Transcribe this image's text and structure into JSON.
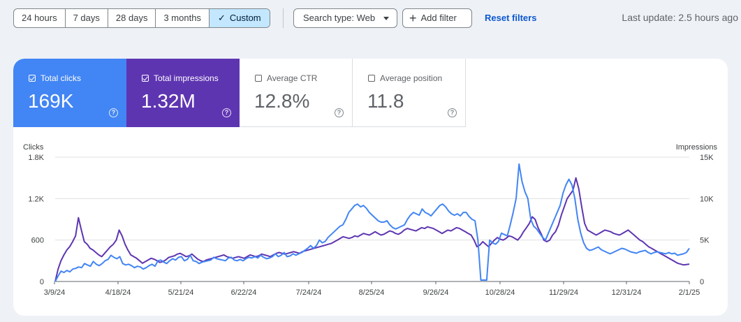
{
  "date_range": {
    "options": [
      "24 hours",
      "7 days",
      "28 days",
      "3 months",
      "Custom"
    ],
    "selected": "Custom"
  },
  "filters": {
    "search_type": "Search type: Web",
    "add_filter": "Add filter",
    "reset": "Reset filters"
  },
  "last_update": "Last update: 2.5 hours ago",
  "metrics": [
    {
      "label": "Total clicks",
      "value": "169K",
      "checked": true,
      "color": "#4285f4"
    },
    {
      "label": "Total impressions",
      "value": "1.32M",
      "checked": true,
      "color": "#5e35b1"
    },
    {
      "label": "Average CTR",
      "value": "12.8%",
      "checked": false
    },
    {
      "label": "Average position",
      "value": "11.8",
      "checked": false
    }
  ],
  "chart_data": {
    "type": "line",
    "left_axis_title": "Clicks",
    "right_axis_title": "Impressions",
    "left_ticks": [
      "1.8K",
      "1.2K",
      "600",
      "0"
    ],
    "right_ticks": [
      "15K",
      "10K",
      "5K",
      "0"
    ],
    "x_ticks": [
      "3/9/24",
      "4/18/24",
      "5/21/24",
      "6/22/24",
      "7/24/24",
      "8/25/24",
      "9/26/24",
      "10/28/24",
      "11/29/24",
      "12/31/24",
      "2/1/25"
    ],
    "ylim_left": [
      0,
      1800
    ],
    "ylim_right": [
      0,
      15000
    ],
    "grid": true,
    "series": [
      {
        "name": "Clicks",
        "axis": "left",
        "color": "#4285f4",
        "values": [
          0,
          80,
          150,
          130,
          160,
          140,
          180,
          190,
          210,
          200,
          260,
          240,
          220,
          290,
          250,
          230,
          260,
          300,
          320,
          380,
          350,
          330,
          360,
          260,
          240,
          250,
          230,
          200,
          220,
          210,
          180,
          200,
          230,
          250,
          220,
          300,
          310,
          280,
          260,
          300,
          330,
          310,
          350,
          360,
          300,
          320,
          380,
          300,
          290,
          260,
          280,
          290,
          300,
          310,
          350,
          330,
          320,
          310,
          300,
          340,
          350,
          310,
          300,
          320,
          300,
          330,
          350,
          340,
          360,
          340,
          380,
          350,
          330,
          340,
          360,
          400,
          360,
          380,
          420,
          360,
          370,
          400,
          380,
          400,
          420,
          450,
          480,
          520,
          480,
          520,
          600,
          560,
          580,
          640,
          680,
          720,
          760,
          800,
          820,
          900,
          1000,
          1050,
          1100,
          1120,
          1080,
          1100,
          1060,
          1000,
          960,
          920,
          880,
          860,
          860,
          880,
          820,
          780,
          760,
          780,
          800,
          820,
          900,
          960,
          1000,
          980,
          960,
          1050,
          1000,
          980,
          950,
          1000,
          1050,
          1100,
          1120,
          1080,
          1020,
          980,
          960,
          980,
          950,
          1000,
          1000,
          940,
          900,
          880,
          600,
          20,
          20,
          20,
          600,
          560,
          540,
          580,
          700,
          680,
          660,
          820,
          1000,
          1200,
          1700,
          1450,
          1300,
          1200,
          900,
          800,
          760,
          700,
          640,
          600,
          700,
          800,
          900,
          1000,
          1100,
          1280,
          1400,
          1480,
          1400,
          1200,
          900,
          700,
          560,
          480,
          450,
          460,
          480,
          500,
          460,
          440,
          420,
          400,
          420,
          440,
          460,
          480,
          470,
          450,
          430,
          420,
          410,
          430,
          440,
          450,
          420,
          400,
          420,
          430,
          420,
          410,
          400,
          420,
          400,
          410,
          380,
          390,
          400,
          420,
          480
        ]
      },
      {
        "name": "Impressions",
        "axis": "right",
        "color": "#5e35b1",
        "values": [
          0,
          1500,
          2500,
          3200,
          3800,
          4200,
          4800,
          5500,
          7700,
          6200,
          4800,
          4500,
          4000,
          3800,
          3500,
          3200,
          3000,
          3400,
          3800,
          4200,
          4500,
          5000,
          6200,
          5500,
          4500,
          3800,
          3200,
          3000,
          2800,
          2500,
          2200,
          2400,
          2600,
          2800,
          2700,
          2500,
          2300,
          2400,
          2600,
          2900,
          3000,
          3100,
          3300,
          3400,
          3200,
          3000,
          3100,
          3300,
          3000,
          2700,
          2500,
          2400,
          2600,
          2700,
          2800,
          2900,
          3000,
          3100,
          3200,
          3000,
          2900,
          2800,
          2900,
          3000,
          2900,
          2800,
          3000,
          3200,
          3100,
          3000,
          3100,
          3300,
          3200,
          3100,
          3000,
          3200,
          3400,
          3500,
          3400,
          3300,
          3400,
          3500,
          3600,
          3500,
          3400,
          3600,
          3700,
          3800,
          3900,
          4000,
          4100,
          4200,
          4300,
          4400,
          4500,
          4600,
          4800,
          5000,
          5200,
          5400,
          5300,
          5200,
          5300,
          5500,
          5400,
          5600,
          5800,
          5700,
          5600,
          5800,
          6000,
          5800,
          5600,
          5700,
          5900,
          6100,
          6000,
          5800,
          5700,
          5900,
          6200,
          6400,
          6300,
          6200,
          6100,
          6300,
          6500,
          6400,
          6600,
          6500,
          6400,
          6200,
          6000,
          5800,
          6000,
          6200,
          6100,
          6300,
          6500,
          6400,
          6200,
          6000,
          5800,
          5600,
          5000,
          4200,
          4400,
          4800,
          4500,
          4200,
          4600,
          5000,
          5300,
          5100,
          5000,
          5200,
          5500,
          5400,
          5200,
          5000,
          5400,
          6000,
          6500,
          7000,
          7800,
          7500,
          6500,
          5800,
          5000,
          4800,
          5000,
          5600,
          6000,
          6800,
          8000,
          9000,
          10000,
          10500,
          11000,
          12500,
          11200,
          9000,
          7000,
          6200,
          6000,
          5800,
          5600,
          5800,
          6000,
          6200,
          6100,
          6000,
          5800,
          5700,
          5600,
          5800,
          6000,
          6200,
          5900,
          5600,
          5300,
          5000,
          4800,
          4500,
          4200,
          4000,
          3800,
          3600,
          3400,
          3200,
          3000,
          2800,
          2600,
          2400,
          2200,
          2100,
          2000,
          2050,
          2100
        ]
      }
    ]
  }
}
